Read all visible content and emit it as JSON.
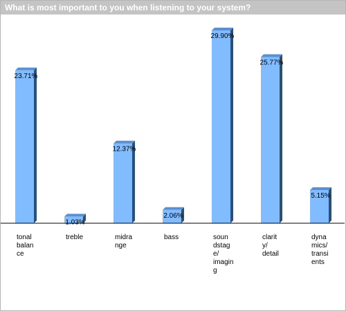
{
  "colors": {
    "bar_front": "#80bcff",
    "bar_side": "#2f4f6e",
    "bar_top": "#5a8fd0",
    "title_bg": "#c4c4c4",
    "axis": "#000000"
  },
  "chart_data": {
    "type": "bar",
    "title": "What is most important to you when listening to your system?",
    "categories": [
      [
        "tonal",
        "balan",
        "ce"
      ],
      [
        "treble"
      ],
      [
        "midra",
        "nge"
      ],
      [
        "bass"
      ],
      [
        "soun",
        "dstag",
        "e/",
        "imagin",
        "g"
      ],
      [
        "clarit",
        "y/",
        "detail"
      ],
      [
        "dyna",
        "mics/",
        "transi",
        "ents"
      ]
    ],
    "values": [
      23.71,
      1.03,
      12.37,
      2.06,
      29.9,
      25.77,
      5.15
    ],
    "labels": [
      "23.71%",
      "1.03%",
      "12.37%",
      "2.06%",
      "29.90%",
      "25.77%",
      "5.15%"
    ],
    "ylim": [
      0,
      29.9
    ],
    "grid": false,
    "legend": "none"
  }
}
